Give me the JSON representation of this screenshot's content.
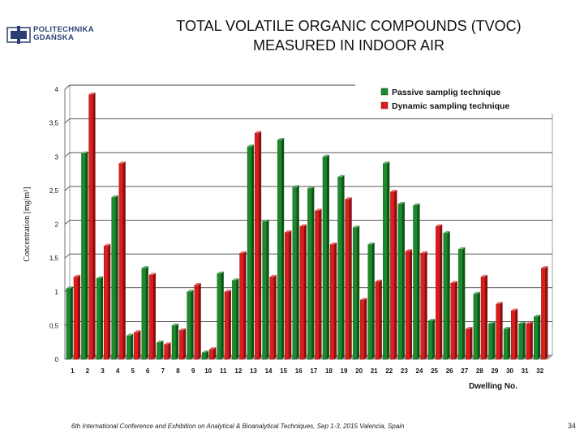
{
  "logo": {
    "line1": "POLITECHNIKA",
    "line2": "GDAŃSKA",
    "color": "#2b3f73"
  },
  "title": {
    "line1": "TOTAL VOLATILE ORGANIC COMPOUNDS (TVOC)",
    "line2": "MEASURED IN INDOOR AIR"
  },
  "footer": "6th International Conference and Exhibition on Analytical & Bioanalytical Techniques, Sep 1-3, 2015 Valencia, Spain",
  "page_number": "34",
  "chart_data": {
    "type": "bar",
    "title": "",
    "xlabel": "Dwelling No.",
    "ylabel": "Concentration [mg/m³]",
    "ylim": [
      0,
      4
    ],
    "yticks": [
      0,
      0.5,
      1,
      1.5,
      2,
      2.5,
      3,
      3.5,
      4
    ],
    "ytick_labels": [
      "0",
      "0,5",
      "1",
      "1,5",
      "2",
      "2,5",
      "3",
      "3,5",
      "4"
    ],
    "grid": true,
    "legend_position": "top-right",
    "categories": [
      "1",
      "2",
      "3",
      "4",
      "5",
      "6",
      "7",
      "8",
      "9",
      "10",
      "11",
      "12",
      "13",
      "14",
      "15",
      "16",
      "17",
      "18",
      "19",
      "20",
      "21",
      "22",
      "23",
      "24",
      "25",
      "26",
      "27",
      "28",
      "29",
      "30",
      "31",
      "32"
    ],
    "series": [
      {
        "name": "Passive samplig technique",
        "color": "#1a8a2a",
        "values": [
          1.05,
          3.05,
          1.2,
          2.4,
          0.35,
          1.35,
          0.25,
          0.5,
          1.0,
          0.1,
          1.27,
          1.17,
          3.15,
          2.04,
          3.25,
          2.55,
          2.53,
          3.0,
          2.7,
          1.95,
          1.7,
          2.9,
          2.3,
          2.28,
          0.57,
          1.87,
          1.63,
          0.97,
          0.53,
          0.45,
          0.53,
          0.63
        ]
      },
      {
        "name": "Dynamic sampling technique",
        "color": "#e01b1b",
        "values": [
          1.22,
          3.92,
          1.68,
          2.9,
          0.4,
          1.25,
          0.22,
          0.43,
          1.1,
          0.15,
          1.0,
          1.57,
          3.35,
          1.22,
          1.88,
          1.97,
          2.2,
          1.7,
          2.37,
          0.88,
          1.15,
          2.48,
          1.6,
          1.57,
          1.97,
          1.13,
          0.45,
          1.22,
          0.82,
          0.72,
          0.53,
          1.35
        ]
      }
    ]
  }
}
